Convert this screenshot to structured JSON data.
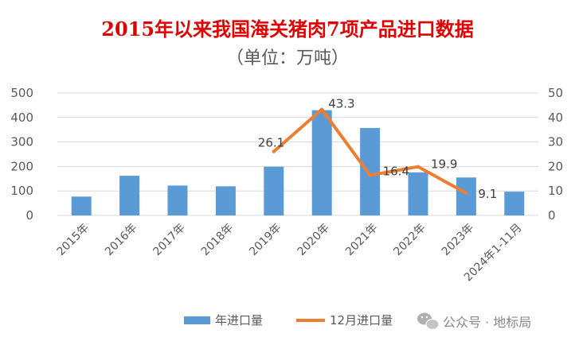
{
  "chart_data": {
    "type": "bar+line",
    "title": "2015年以来我国海关猪肉7项产品进口数据",
    "subtitle": "（单位：万吨）",
    "categories": [
      "2015年",
      "2016年",
      "2017年",
      "2018年",
      "2019年",
      "2020年",
      "2021年",
      "2022年",
      "2023年",
      "2024年1-11月"
    ],
    "series": [
      {
        "name": "年进口量",
        "type": "bar",
        "axis": "left",
        "color": "#5B9BD5",
        "values": [
          77,
          162,
          122,
          119,
          199,
          430,
          357,
          176,
          155,
          97
        ]
      },
      {
        "name": "12月进口量",
        "type": "line",
        "axis": "right",
        "color": "#ED7D31",
        "values": [
          null,
          null,
          null,
          null,
          26.1,
          43.3,
          16.4,
          19.9,
          9.1,
          null
        ],
        "labels": [
          "",
          "",
          "",
          "",
          "26.1",
          "43.3",
          "16.4",
          "19.9",
          "9.1",
          ""
        ]
      }
    ],
    "y_left": {
      "min": 0,
      "max": 500,
      "ticks": [
        0,
        100,
        200,
        300,
        400,
        500
      ]
    },
    "y_right": {
      "min": 0,
      "max": 50,
      "ticks": [
        0,
        10,
        20,
        30,
        40,
        50
      ]
    },
    "grid": true,
    "legend_position": "bottom"
  },
  "watermark": "公众号 · 地标局",
  "colors": {
    "title": "#E00000",
    "grid": "#D9D9D9",
    "text": "#595959"
  }
}
